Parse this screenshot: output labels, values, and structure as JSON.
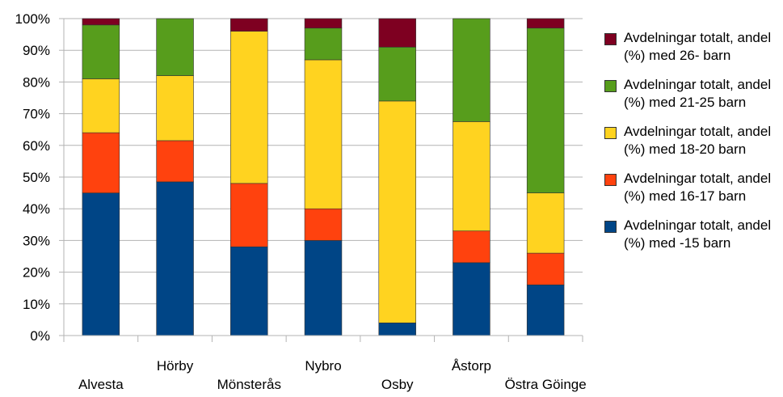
{
  "chart_data": {
    "type": "bar",
    "stacked": "percent",
    "categories": [
      "Alvesta",
      "Hörby",
      "Mönsterås",
      "Nybro",
      "Osby",
      "Åstorp",
      "Östra Göinge"
    ],
    "ylim": [
      0,
      100
    ],
    "yticks": [
      "0%",
      "10%",
      "20%",
      "30%",
      "40%",
      "50%",
      "60%",
      "70%",
      "80%",
      "90%",
      "100%"
    ],
    "grid": true,
    "legend_position": "right",
    "series": [
      {
        "name": "Avdelningar totalt, andel (%) med -15 barn",
        "color": "#004586",
        "values": [
          45,
          48.5,
          28,
          30,
          4,
          23,
          16
        ]
      },
      {
        "name": "Avdelningar totalt, andel (%) med 16-17 barn",
        "color": "#ff420e",
        "values": [
          19,
          13,
          20,
          10,
          0,
          10,
          10
        ]
      },
      {
        "name": "Avdelningar totalt, andel (%) med 18-20 barn",
        "color": "#ffd320",
        "values": [
          17,
          20.5,
          48,
          47,
          70,
          34.5,
          19
        ]
      },
      {
        "name": "Avdelningar totalt, andel (%) med 21-25 barn",
        "color": "#579d1c",
        "values": [
          17,
          18,
          0,
          10,
          17,
          32.5,
          52
        ]
      },
      {
        "name": "Avdelningar totalt, andel (%) med 26- barn",
        "color": "#7e0021",
        "values": [
          2,
          0,
          4,
          3,
          9,
          0,
          3
        ]
      }
    ]
  },
  "legend": {
    "items": [
      {
        "label": "Avdelningar totalt, andel (%) med 26- barn",
        "color": "#7e0021"
      },
      {
        "label": "Avdelningar totalt, andel (%) med 21-25 barn",
        "color": "#579d1c"
      },
      {
        "label": "Avdelningar totalt, andel (%) med 18-20 barn",
        "color": "#ffd320"
      },
      {
        "label": "Avdelningar totalt, andel (%) med 16-17 barn",
        "color": "#ff420e"
      },
      {
        "label": "Avdelningar totalt, andel (%) med -15 barn",
        "color": "#004586"
      }
    ]
  }
}
